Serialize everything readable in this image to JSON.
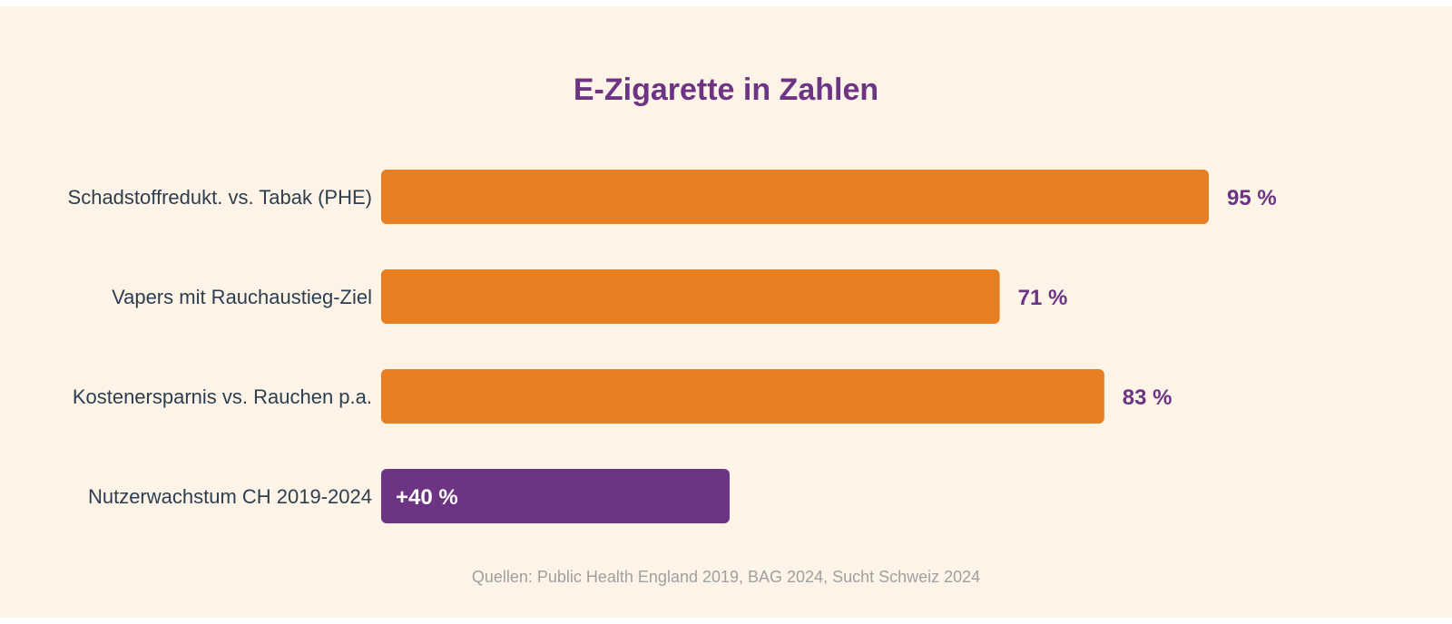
{
  "chart_data": {
    "type": "bar",
    "orientation": "horizontal",
    "title": "E-Zigarette in Zahlen",
    "categories": [
      "Schadstoffredukt. vs. Tabak (PHE)",
      "Vapers mit Rauchaustieg-Ziel",
      "Kostenersparnis vs. Rauchen p.a.",
      "Nutzerwachstum CH 2019-2024"
    ],
    "values": [
      95,
      71,
      83,
      40
    ],
    "value_labels": [
      "95 %",
      "71 %",
      "83 %",
      "+40 %"
    ],
    "bar_colors": [
      "#e67e22",
      "#e67e22",
      "#e67e22",
      "#6c3483"
    ],
    "value_label_colors": [
      "#6c3483",
      "#6c3483",
      "#6c3483",
      "#ffffff"
    ],
    "value_label_inside": [
      false,
      false,
      false,
      true
    ],
    "xlim": [
      0,
      100
    ],
    "grid": false,
    "legend": "none",
    "source": "Quellen: Public Health England 2019, BAG 2024, Sucht Schweiz 2024"
  },
  "colors": {
    "background": "#fdf3e6",
    "title": "#6c3483",
    "category_label": "#2c3e50",
    "source": "#a0a0a0"
  }
}
